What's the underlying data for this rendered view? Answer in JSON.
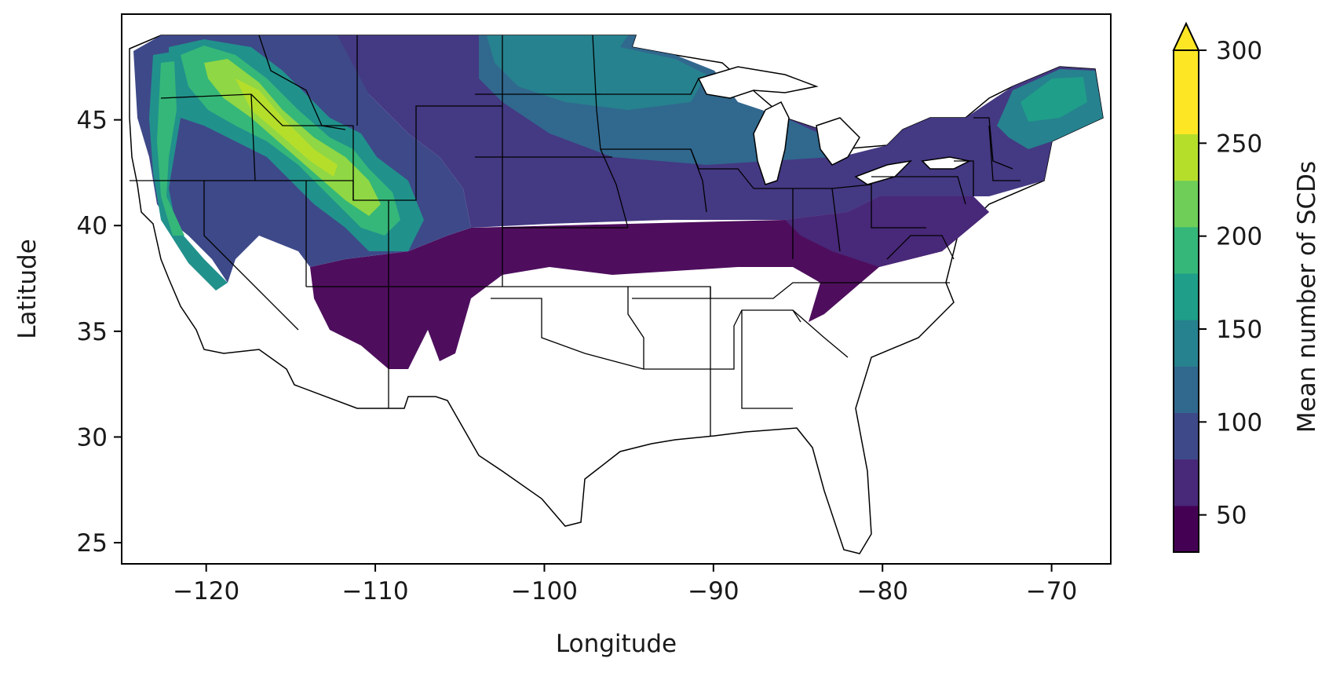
{
  "map": {
    "xlabel": "Longitude",
    "ylabel": "Latitude",
    "xlim": [
      -125,
      -66.5
    ],
    "ylim": [
      24,
      50
    ],
    "x_ticks": [
      {
        "value": -120,
        "label": "−120"
      },
      {
        "value": -110,
        "label": "−110"
      },
      {
        "value": -100,
        "label": "−100"
      },
      {
        "value": -90,
        "label": "−90"
      },
      {
        "value": -80,
        "label": "−80"
      },
      {
        "value": -70,
        "label": "−70"
      }
    ],
    "y_ticks": [
      {
        "value": 25,
        "label": "25"
      },
      {
        "value": 30,
        "label": "30"
      },
      {
        "value": 35,
        "label": "35"
      },
      {
        "value": 40,
        "label": "40"
      },
      {
        "value": 45,
        "label": "45"
      }
    ],
    "region_colors": {
      "veryhigh": "#8fd744",
      "high": "#35b779",
      "mid": "#21918c",
      "low": "#31688e",
      "vlow": "#443983",
      "min": "#440154"
    }
  },
  "colorbar": {
    "label": "Mean number of SCDs",
    "min": 30,
    "max": 300,
    "extend": "max",
    "ticks": [
      {
        "value": 50,
        "label": "50"
      },
      {
        "value": 100,
        "label": "100"
      },
      {
        "value": 150,
        "label": "150"
      },
      {
        "value": 200,
        "label": "200"
      },
      {
        "value": 250,
        "label": "250"
      },
      {
        "value": 300,
        "label": "300"
      }
    ],
    "levels": [
      30,
      55,
      80,
      105,
      130,
      155,
      180,
      205,
      230,
      255,
      280,
      300
    ],
    "colors": [
      "#440154",
      "#482878",
      "#3e4989",
      "#31688e",
      "#26828e",
      "#1f9e89",
      "#35b779",
      "#6ece58",
      "#b5de2b",
      "#fde725",
      "#fde725"
    ],
    "extend_color": "#fde725"
  }
}
